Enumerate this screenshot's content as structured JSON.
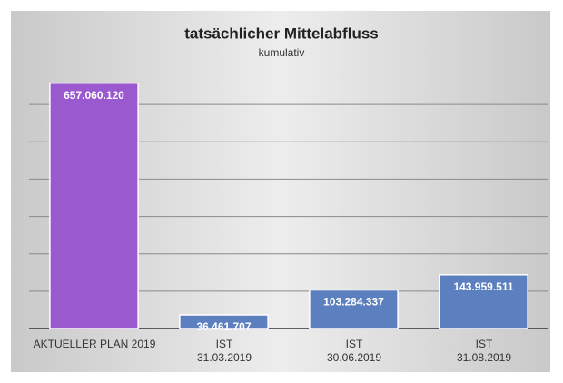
{
  "chart_data": {
    "type": "bar",
    "title": "tatsächlicher Mittelabfluss",
    "subtitle": "kumulativ",
    "categories": [
      "AKTUELLER PLAN 2019",
      "IST\n31.03.2019",
      "IST\n30.06.2019",
      "IST\n31.08.2019"
    ],
    "values": [
      657060120,
      36461707,
      103284337,
      143959511
    ],
    "value_labels": [
      "657.060.120",
      "36.461.707",
      "103.284.337",
      "143.959.511"
    ],
    "colors": [
      "#9b59d0",
      "#5b7fbf",
      "#5b7fbf",
      "#5b7fbf"
    ],
    "ylim": [
      0,
      700000000
    ],
    "yticks": [
      0,
      100000000,
      200000000,
      300000000,
      400000000,
      500000000,
      600000000
    ],
    "grid": true
  }
}
